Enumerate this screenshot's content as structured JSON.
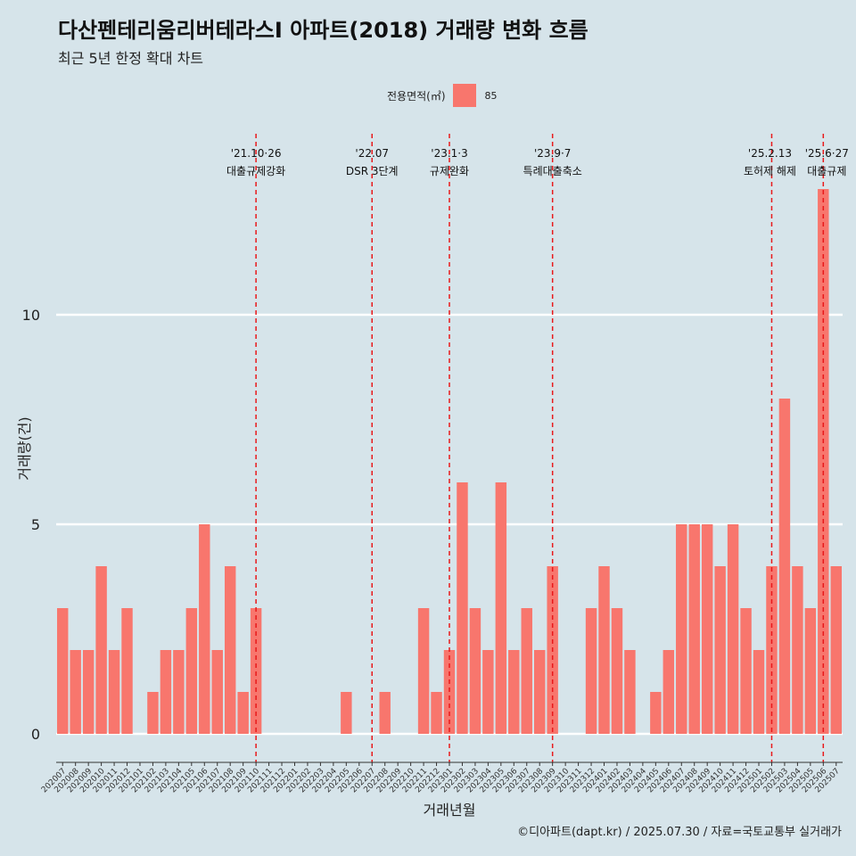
{
  "header": {
    "title": "다산펜테리움리버테라스I 아파트(2018) 거래량 변화 흐름",
    "subtitle": "최근 5년 한정 확대 차트"
  },
  "legend": {
    "title": "전용면적(㎡)",
    "item": "85",
    "color": "#f8766d"
  },
  "caption": "©디아파트(dapt.kr) / 2025.07.30 / 자료=국토교통부 실거래가",
  "chart_data": {
    "type": "bar",
    "xlabel": "거래년월",
    "ylabel": "거래량(건)",
    "ylim": [
      0,
      14
    ],
    "yticks": [
      0,
      5,
      10
    ],
    "grid": "horizontal",
    "bar_color": "#f8766d",
    "categories": [
      "202007",
      "202008",
      "202009",
      "202010",
      "202011",
      "202012",
      "202101",
      "202102",
      "202103",
      "202104",
      "202105",
      "202106",
      "202107",
      "202108",
      "202109",
      "202110",
      "202111",
      "202112",
      "202201",
      "202202",
      "202203",
      "202204",
      "202205",
      "202206",
      "202207",
      "202208",
      "202209",
      "202210",
      "202211",
      "202212",
      "202301",
      "202302",
      "202303",
      "202304",
      "202305",
      "202306",
      "202307",
      "202308",
      "202309",
      "202310",
      "202311",
      "202312",
      "202401",
      "202402",
      "202403",
      "202404",
      "202405",
      "202406",
      "202407",
      "202408",
      "202409",
      "202410",
      "202411",
      "202412",
      "202501",
      "202502",
      "202503",
      "202504",
      "202505",
      "202506",
      "202507"
    ],
    "values": [
      3,
      2,
      2,
      4,
      2,
      3,
      0,
      1,
      2,
      2,
      3,
      5,
      2,
      4,
      1,
      3,
      0,
      0,
      0,
      0,
      0,
      0,
      1,
      0,
      0,
      1,
      0,
      0,
      3,
      1,
      2,
      6,
      3,
      2,
      6,
      2,
      3,
      2,
      4,
      0,
      0,
      3,
      4,
      3,
      2,
      0,
      1,
      2,
      5,
      5,
      5,
      4,
      5,
      3,
      2,
      4,
      8,
      4,
      3,
      13,
      4
    ],
    "events": [
      {
        "date_label": "'21.10·26",
        "text": "대출규제강화",
        "at": "202110"
      },
      {
        "date_label": "'22.07",
        "text": "DSR 3단계",
        "at": "202207"
      },
      {
        "date_label": "'23.1·3",
        "text": "규제완화",
        "at": "202301"
      },
      {
        "date_label": "'23.9·7",
        "text": "특례대출축소",
        "at": "202309"
      },
      {
        "date_label": "'25.2.13",
        "text": "토허제 해제",
        "at": "202502"
      },
      {
        "date_label": "'25.6·27",
        "text": "대출규제",
        "at": "202506"
      }
    ]
  }
}
